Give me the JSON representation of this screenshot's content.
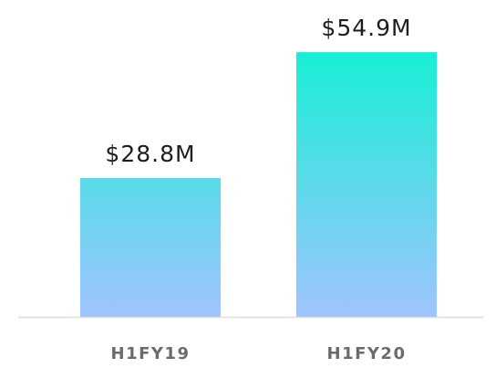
{
  "chart_data": {
    "type": "bar",
    "categories": [
      "H1FY19",
      "H1FY20"
    ],
    "values": [
      28.8,
      54.9
    ],
    "value_labels": [
      "$28.8M",
      "$54.9M"
    ],
    "color_gradient": [
      "#a0c4ff",
      "#18efd5"
    ]
  }
}
